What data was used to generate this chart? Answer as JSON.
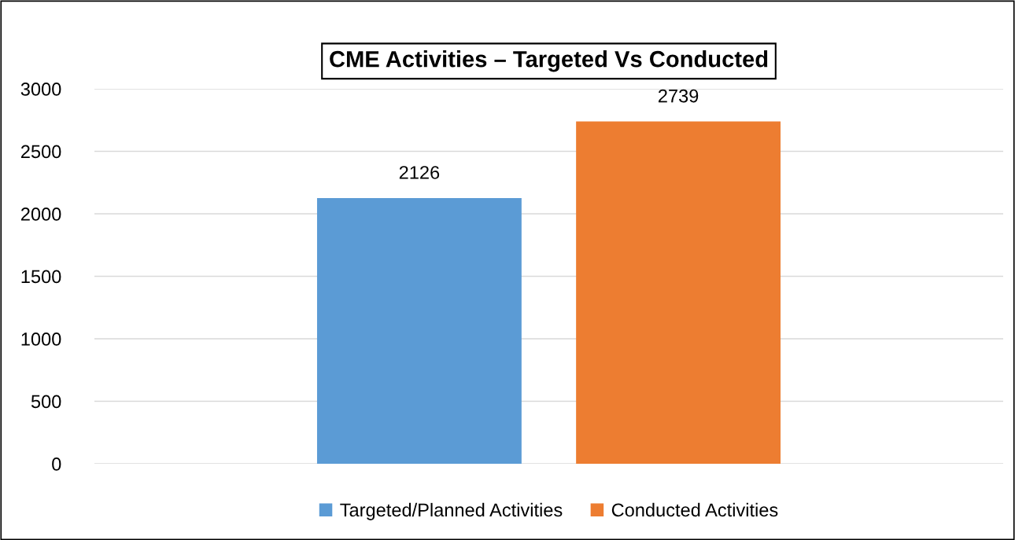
{
  "chart_data": {
    "type": "bar",
    "title": "CME Activities – Targeted Vs Conducted",
    "categories": [
      null
    ],
    "series": [
      {
        "name": "Targeted/Planned Activities",
        "color": "#5b9bd5",
        "values": [
          2126
        ]
      },
      {
        "name": "Conducted Activities",
        "color": "#ed7d31",
        "values": [
          2739
        ]
      }
    ],
    "ylim": [
      0,
      3000
    ],
    "yticks": [
      0,
      500,
      1000,
      1500,
      2000,
      2500,
      3000
    ],
    "grid": "y",
    "legend": "bottom",
    "data_labels": true
  }
}
